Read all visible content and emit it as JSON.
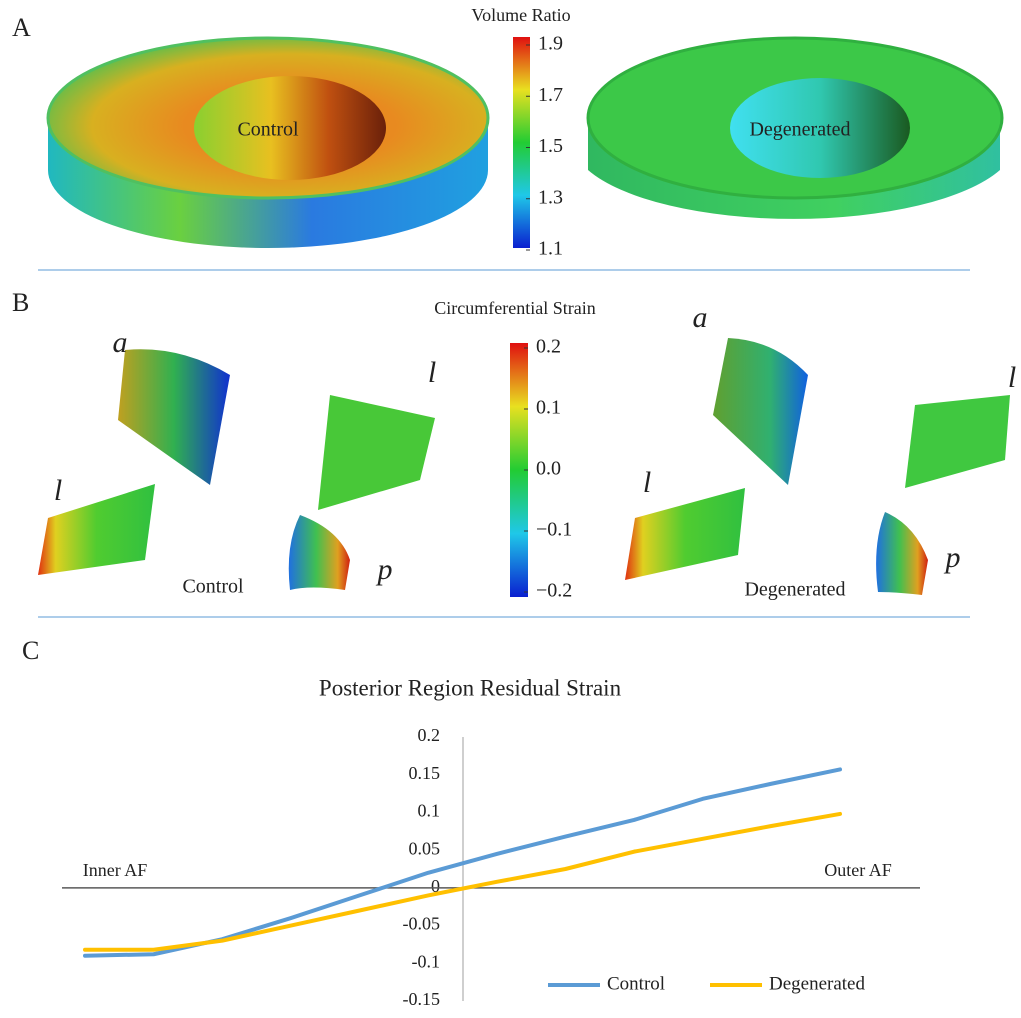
{
  "panel_labels": [
    "A",
    "B",
    "C"
  ],
  "panel_a": {
    "colorbar_title": "Volume Ratio",
    "colorbar_lim": [
      1.1,
      1.9
    ],
    "colorbar_ticks": [
      1.1,
      1.3,
      1.5,
      1.7,
      1.9
    ],
    "images": [
      "Control",
      "Degenerated"
    ]
  },
  "panel_b": {
    "colorbar_title": "Circumferential Strain",
    "colorbar_lim": [
      -0.2,
      0.2
    ],
    "colorbar_ticks": [
      {
        "value": -0.2,
        "label": "−0.2"
      },
      {
        "value": -0.1,
        "label": "−0.1"
      },
      {
        "value": 0,
        "label": "0.0"
      },
      0.1,
      0.2
    ],
    "images": [
      "Control",
      "Degenerated"
    ],
    "region_labels": {
      "control": [
        "a",
        "l",
        "l",
        "p"
      ],
      "degenerated": [
        "a",
        "l",
        "l",
        "p"
      ]
    }
  },
  "chart_data": {
    "type": "line",
    "title": "Posterior Region Residual Strain",
    "categories": [
      null,
      null,
      null,
      null,
      null,
      null,
      null,
      null,
      null,
      null,
      null,
      null
    ],
    "series": [
      {
        "name": "Control",
        "color": "#5b9bd5",
        "values": [
          -0.09,
          -0.088,
          -0.068,
          -0.04,
          -0.01,
          0.02,
          0.045,
          0.068,
          0.09,
          0.118,
          0.138,
          0.157
        ]
      },
      {
        "name": "Degenerated",
        "color": "#ffc000",
        "values": [
          -0.082,
          -0.082,
          -0.07,
          -0.05,
          -0.03,
          -0.01,
          0.008,
          0.025,
          0.048,
          0.065,
          0.082,
          0.098
        ]
      }
    ],
    "ylim": [
      -0.15,
      0.2
    ],
    "yticks": [
      -0.15,
      -0.1,
      -0.05,
      0,
      0.05,
      0.1,
      0.15,
      0.2
    ],
    "annotations": [
      "Inner AF",
      "Outer AF"
    ],
    "legend": "lower right"
  }
}
